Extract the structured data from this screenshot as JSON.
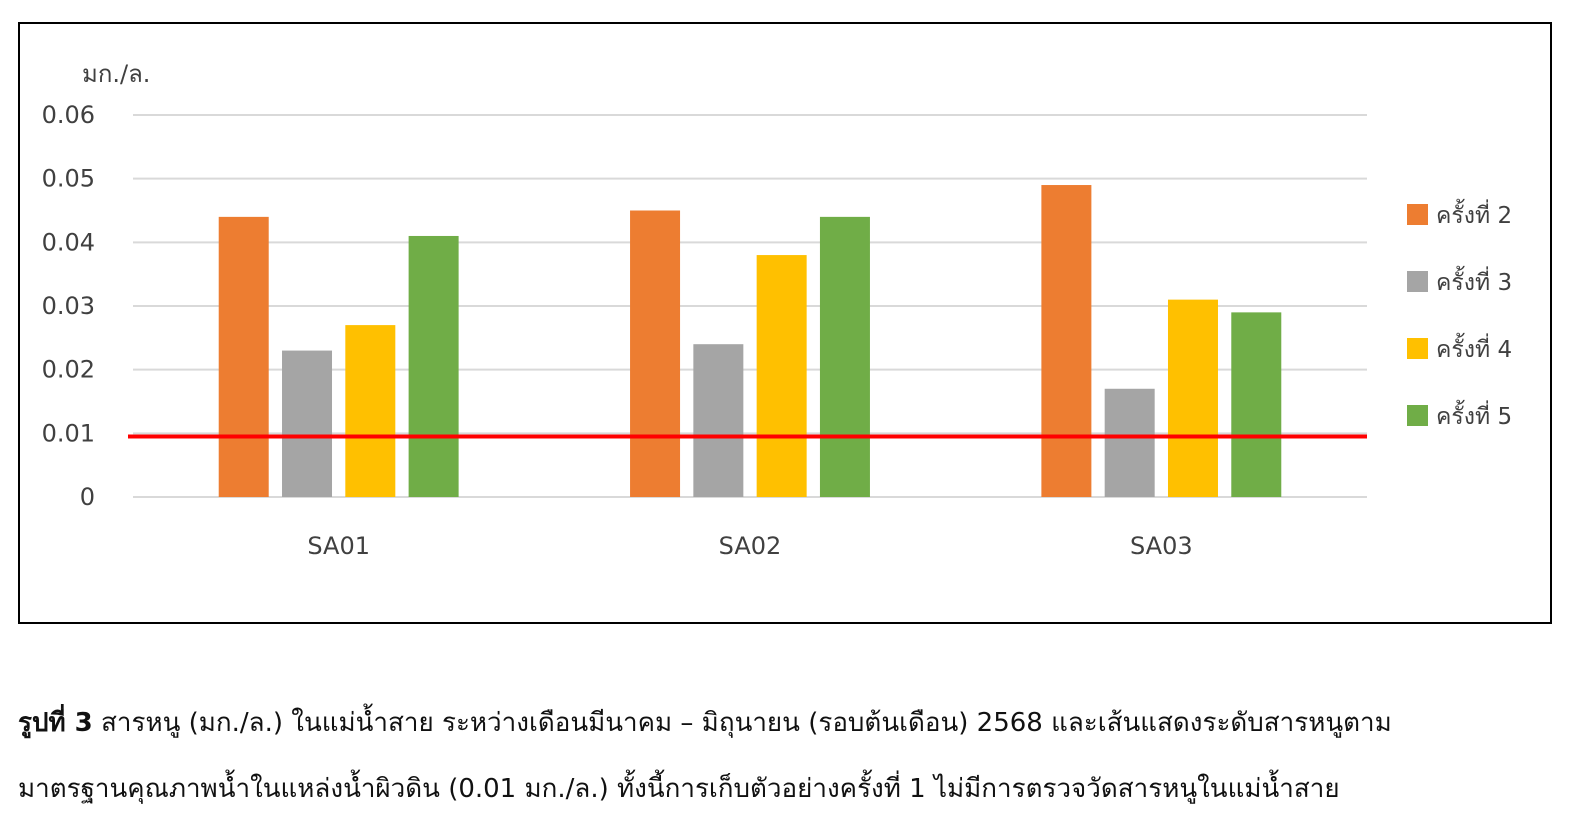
{
  "chart_data": {
    "type": "bar",
    "unit_label": "มก./ล.",
    "categories": [
      "SA01",
      "SA02",
      "SA03"
    ],
    "series": [
      {
        "name": "ครั้งที่ 2",
        "color": "#ED7D31",
        "values": [
          0.044,
          0.045,
          0.049
        ]
      },
      {
        "name": "ครั้งที่ 3",
        "color": "#A5A5A5",
        "values": [
          0.023,
          0.024,
          0.017
        ]
      },
      {
        "name": "ครั้งที่ 4",
        "color": "#FFC000",
        "values": [
          0.027,
          0.038,
          0.031
        ]
      },
      {
        "name": "ครั้งที่ 5",
        "color": "#70AD47",
        "values": [
          0.041,
          0.044,
          0.029
        ]
      }
    ],
    "y_ticks": [
      "0",
      "0.01",
      "0.02",
      "0.03",
      "0.04",
      "0.05",
      "0.06"
    ],
    "ylim": [
      0,
      0.06
    ],
    "reference_line": {
      "value": 0.0095,
      "color": "#FF0000"
    },
    "grid": true,
    "legend_position": "right"
  },
  "caption": {
    "label": "รูปที่ 3",
    "line1": "สารหนู (มก./ล.) ในแม่น้ำสาย ระหว่างเดือนมีนาคม – มิถุนายน (รอบต้นเดือน) 2568 และเส้นแสดงระดับสารหนูตาม",
    "line2": "มาตรฐานคุณภาพน้ำในแหล่งน้ำผิวดิน (0.01 มก./ล.) ทั้งนี้การเก็บตัวอย่างครั้งที่ 1 ไม่มีการตรวจวัดสารหนูในแม่น้ำสาย"
  }
}
